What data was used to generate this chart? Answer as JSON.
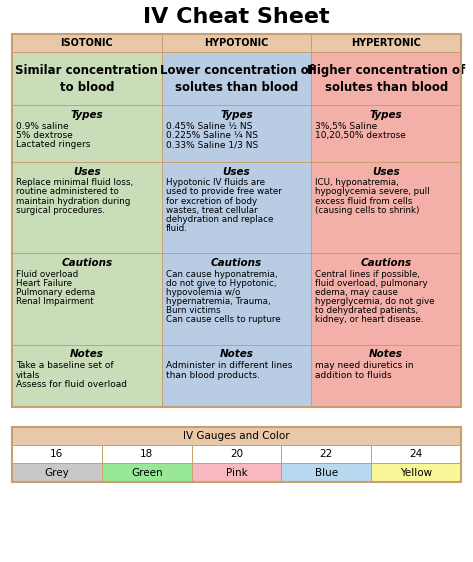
{
  "title": "IV Cheat Sheet",
  "title_fontsize": 16,
  "background_color": "#ffffff",
  "col_headers": [
    "ISOTONIC",
    "HYPOTONIC",
    "HYPERTONIC"
  ],
  "col_header_bg": [
    "#d4b8a0",
    "#d4b8a0",
    "#d4b8a0"
  ],
  "col_colors": [
    "#c8ddb8",
    "#b8cce4",
    "#f2b0a8"
  ],
  "definition_texts": [
    "Similar concentration\nto blood",
    "Lower concentration of\nsolutes than blood",
    "Higher concentration of\nsolutes than blood"
  ],
  "types_header": "Types",
  "types_bodies": [
    "0.9% saline\n5% dextrose\nLactated ringers",
    "0.45% Saline ½ NS\n0.225% Saline ¼ NS\n0.33% Saline 1/3 NS",
    "3%,5% Saline\n10,20,50% dextrose"
  ],
  "uses_header": "Uses",
  "uses_bodies": [
    "Replace minimal fluid loss,\nroutine administered to\nmaintain hydration during\nsurgical procedures.",
    "Hypotonic IV fluids are\nused to provide free water\nfor excretion of body\nwastes, treat cellular\ndehydration and replace\nfluid.",
    "ICU, hyponatremia,\nhypoglycemia severe, pull\nexcess fluid from cells\n(causing cells to shrink)"
  ],
  "cautions_header": "Cautions",
  "cautions_bodies": [
    "Fluid overload\nHeart Failure\nPulmonary edema\nRenal Impairment",
    "Can cause hyponatremia,\ndo not give to Hypotonic,\nhypovolemia w/o\nhypernatremia, Trauma,\nBurn victims\nCan cause cells to rupture",
    "Central lines if possible,\nfluid overload, pulmonary\nedema, may cause\nhyperglycemia, do not give\nto dehydrated patients,\nkidney, or heart disease."
  ],
  "notes_header": "Notes",
  "notes_bodies": [
    "Take a baseline set of\nvitals\nAssess for fluid overload",
    "Administer in different lines\nthan blood products.",
    "may need diuretics in\naddition to fluids"
  ],
  "gauge_title": "IV Gauges and Color",
  "gauge_numbers": [
    "16",
    "18",
    "20",
    "22",
    "24"
  ],
  "gauge_colors": [
    "#c8c8c8",
    "#98e898",
    "#f8b8c0",
    "#b8d8f0",
    "#f8f898"
  ],
  "gauge_names": [
    "Grey",
    "Green",
    "Pink",
    "Blue",
    "Yellow"
  ],
  "border_color": "#c8a070",
  "header_row_color": "#e8c8a8"
}
